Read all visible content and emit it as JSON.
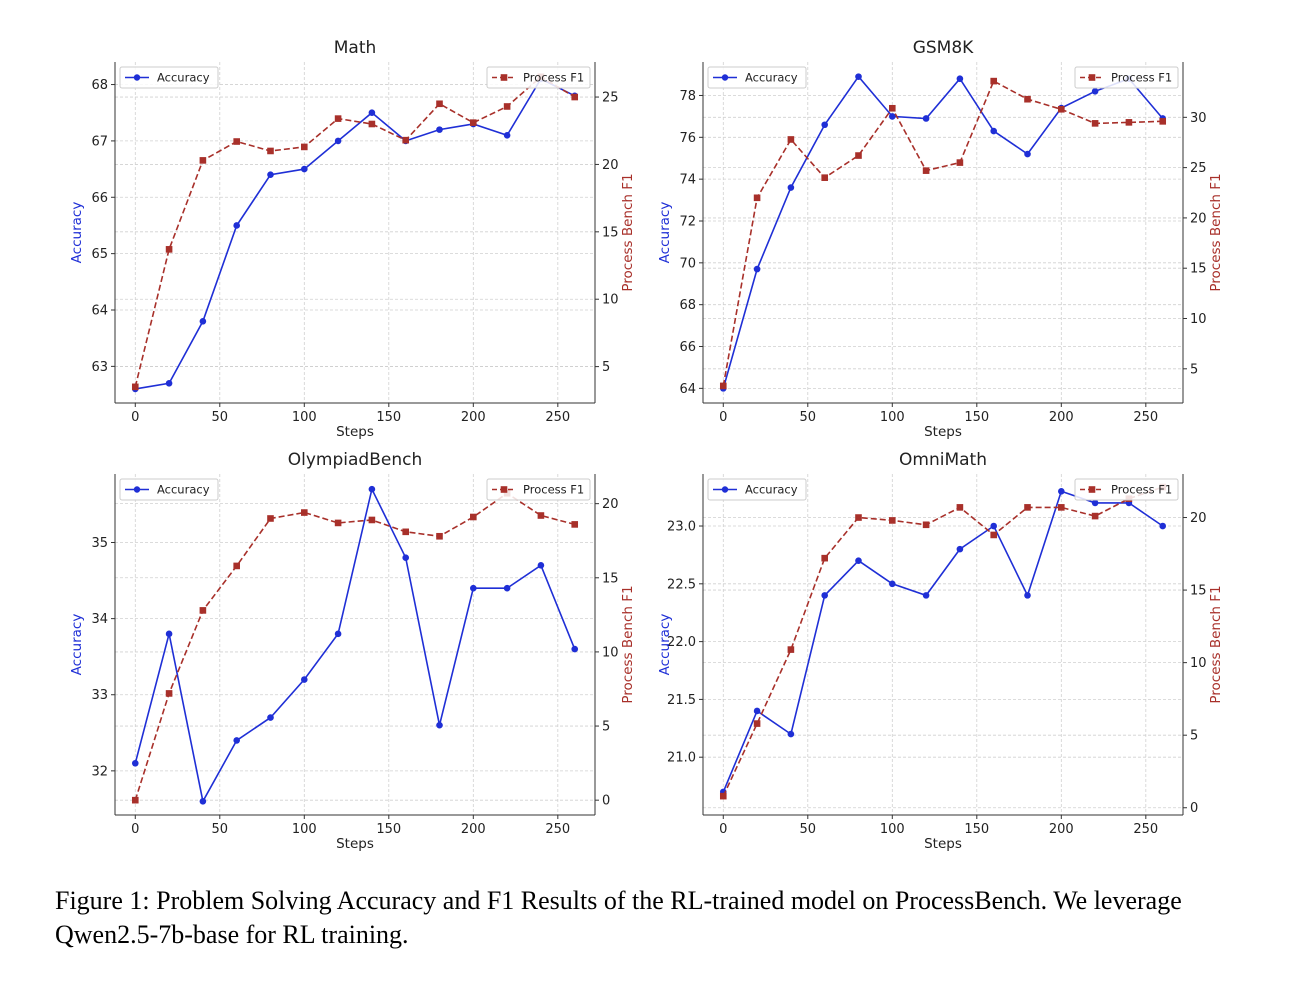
{
  "colors": {
    "accuracy": "#1f2fd6",
    "f1": "#a8302a",
    "axis": "#333333",
    "grid": "#d0d0d0"
  },
  "chart_data": [
    {
      "type": "line",
      "title": "Math",
      "xlabel": "Steps",
      "ylabel_left": "Accuracy",
      "ylabel_right": "Process Bench F1",
      "x": [
        0,
        20,
        40,
        60,
        80,
        100,
        120,
        140,
        160,
        180,
        200,
        220,
        240,
        260
      ],
      "xlim": [
        -12,
        272
      ],
      "xticks": [
        0,
        50,
        100,
        150,
        200,
        250
      ],
      "ylim_left": [
        62.35,
        68.4
      ],
      "yticks_left": [
        63,
        64,
        65,
        66,
        67,
        68
      ],
      "ylim_right": [
        2.3,
        27.6
      ],
      "yticks_right": [
        5,
        10,
        15,
        20,
        25
      ],
      "grid": true,
      "series": [
        {
          "name": "Accuracy",
          "axis": "left",
          "style": "solid",
          "marker": "circle",
          "values": [
            62.6,
            62.7,
            63.8,
            65.5,
            66.4,
            66.5,
            67.0,
            67.5,
            67.0,
            67.2,
            67.3,
            67.1,
            68.1,
            67.8
          ]
        },
        {
          "name": "Process F1",
          "axis": "right",
          "style": "dashed",
          "marker": "square",
          "values": [
            3.5,
            13.7,
            20.3,
            21.7,
            21.0,
            21.3,
            23.4,
            23.0,
            21.8,
            24.5,
            23.1,
            24.3,
            26.5,
            25.0
          ]
        }
      ],
      "legend_left": "top-left",
      "legend_right": "top-right"
    },
    {
      "type": "line",
      "title": "GSM8K",
      "xlabel": "Steps",
      "ylabel_left": "Accuracy",
      "ylabel_right": "Process Bench F1",
      "x": [
        0,
        20,
        40,
        60,
        80,
        100,
        120,
        140,
        160,
        180,
        200,
        220,
        240,
        260
      ],
      "xlim": [
        -12,
        272
      ],
      "xticks": [
        0,
        50,
        100,
        150,
        200,
        250
      ],
      "ylim_left": [
        63.3,
        79.6
      ],
      "yticks_left": [
        64,
        66,
        68,
        70,
        72,
        74,
        76,
        78
      ],
      "ylim_right": [
        1.6,
        35.5
      ],
      "yticks_right": [
        5,
        10,
        15,
        20,
        25,
        30
      ],
      "grid": true,
      "series": [
        {
          "name": "Accuracy",
          "axis": "left",
          "style": "solid",
          "marker": "circle",
          "values": [
            64.0,
            69.7,
            73.6,
            76.6,
            78.9,
            77.0,
            76.9,
            78.8,
            76.3,
            75.2,
            77.4,
            78.2,
            78.8,
            76.9
          ]
        },
        {
          "name": "Process F1",
          "axis": "right",
          "style": "dashed",
          "marker": "square",
          "values": [
            3.3,
            22.0,
            27.8,
            24.0,
            26.2,
            30.9,
            24.7,
            25.5,
            33.6,
            31.8,
            30.8,
            29.4,
            29.5,
            29.6
          ]
        }
      ],
      "legend_left": "top-left",
      "legend_right": "top-right"
    },
    {
      "type": "line",
      "title": "OlympiadBench",
      "xlabel": "Steps",
      "ylabel_left": "Accuracy",
      "ylabel_right": "Process Bench F1",
      "x": [
        0,
        20,
        40,
        60,
        80,
        100,
        120,
        140,
        160,
        180,
        200,
        220,
        240,
        260
      ],
      "xlim": [
        -12,
        272
      ],
      "xticks": [
        0,
        50,
        100,
        150,
        200,
        250
      ],
      "ylim_left": [
        31.42,
        35.9
      ],
      "yticks_left": [
        32,
        33,
        34,
        35
      ],
      "ylim_right": [
        -1.0,
        22.0
      ],
      "yticks_right": [
        0,
        5,
        10,
        15,
        20
      ],
      "grid": true,
      "series": [
        {
          "name": "Accuracy",
          "axis": "left",
          "style": "solid",
          "marker": "circle",
          "values": [
            32.1,
            33.8,
            31.6,
            32.4,
            32.7,
            33.2,
            33.8,
            35.7,
            34.8,
            32.6,
            34.4,
            34.4,
            34.7,
            33.6
          ]
        },
        {
          "name": "Process F1",
          "axis": "right",
          "style": "dashed",
          "marker": "square",
          "values": [
            0.0,
            7.2,
            12.8,
            15.8,
            19.0,
            19.4,
            18.7,
            18.9,
            18.1,
            17.8,
            19.1,
            20.7,
            19.2,
            18.6
          ]
        }
      ],
      "legend_left": "top-left",
      "legend_right": "top-right"
    },
    {
      "type": "line",
      "title": "OmniMath",
      "xlabel": "Steps",
      "ylabel_left": "Accuracy",
      "ylabel_right": "Process Bench F1",
      "x": [
        0,
        20,
        40,
        60,
        80,
        100,
        120,
        140,
        160,
        180,
        200,
        220,
        240,
        260
      ],
      "xlim": [
        -12,
        272
      ],
      "xticks": [
        0,
        50,
        100,
        150,
        200,
        250
      ],
      "ylim_left": [
        20.5,
        23.45
      ],
      "yticks_left": [
        21.0,
        21.5,
        22.0,
        22.5,
        23.0
      ],
      "ylim_right": [
        -0.5,
        23.0
      ],
      "yticks_right": [
        0,
        5,
        10,
        15,
        20
      ],
      "grid": true,
      "series": [
        {
          "name": "Accuracy",
          "axis": "left",
          "style": "solid",
          "marker": "circle",
          "values": [
            20.7,
            21.4,
            21.2,
            22.4,
            22.7,
            22.5,
            22.4,
            22.8,
            23.0,
            22.4,
            23.3,
            23.2,
            23.2,
            23.0
          ]
        },
        {
          "name": "Process F1",
          "axis": "right",
          "style": "dashed",
          "marker": "square",
          "values": [
            0.8,
            5.8,
            10.9,
            17.2,
            20.0,
            19.8,
            19.5,
            20.7,
            18.8,
            20.7,
            20.7,
            20.1,
            21.3,
            22.1
          ]
        }
      ],
      "legend_left": "top-left",
      "legend_right": "top-right"
    }
  ],
  "caption": "Figure 1: Problem Solving Accuracy and F1 Results of the RL-trained model on ProcessBench. We leverage Qwen2.5-7b-base for RL training."
}
